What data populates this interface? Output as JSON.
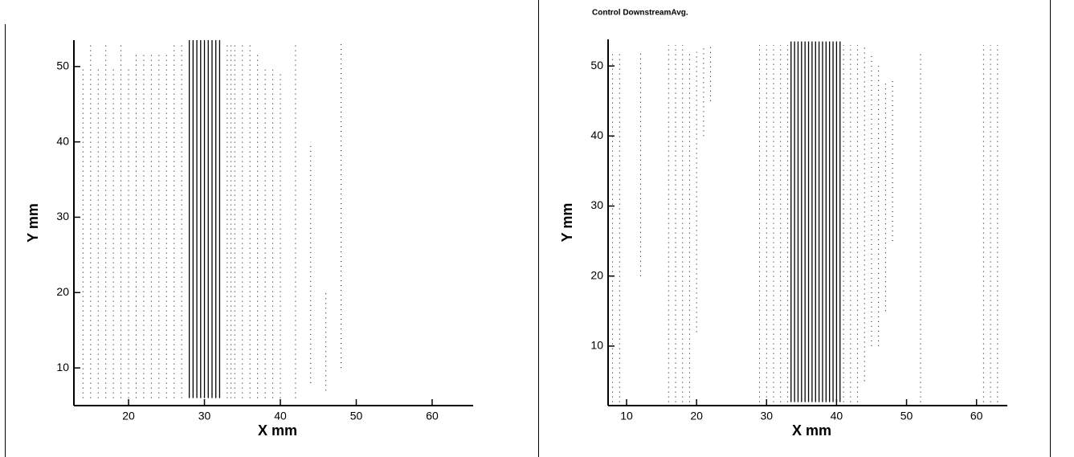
{
  "chart_data": [
    {
      "type": "quiver",
      "xlabel": "X mm",
      "ylabel": "Y mm",
      "xlim": [
        12.8,
        65.4
      ],
      "ylim": [
        5,
        53.5
      ],
      "xticks": [
        20,
        30,
        40,
        50,
        60
      ],
      "yticks": [
        10,
        20,
        30,
        40,
        50
      ],
      "color": "#000000",
      "columns": {
        "x": [
          14,
          15,
          16,
          17,
          18,
          19,
          20,
          21,
          22,
          23,
          24,
          25,
          26,
          27,
          33,
          33.5,
          34,
          35,
          36,
          37,
          38,
          39,
          40,
          42,
          44,
          46,
          48
        ],
        "ymin": [
          6,
          6,
          6,
          6,
          6,
          6,
          6,
          6,
          6,
          6,
          6,
          6,
          6,
          6,
          6,
          6,
          6,
          6,
          6,
          6,
          6,
          6,
          6,
          6,
          8,
          7,
          10
        ],
        "ymax": [
          50,
          53,
          50,
          53,
          50,
          53,
          50,
          52,
          52,
          52,
          52,
          52,
          53,
          53,
          53,
          53,
          53,
          53,
          53,
          52,
          50,
          50,
          49,
          53,
          40,
          20,
          53
        ]
      },
      "streaks": {
        "x": [
          28,
          28.5,
          29,
          29.5,
          30,
          30.5,
          31,
          31.5,
          32
        ],
        "ymin": [
          6,
          6,
          6,
          6,
          6,
          6,
          6,
          6,
          6
        ],
        "ymax": [
          53.5,
          53.5,
          53.5,
          53.5,
          53.5,
          53.5,
          53.5,
          53.5,
          53.5
        ]
      }
    },
    {
      "type": "quiver",
      "title": "Control DownstreamAvg.",
      "xlabel": "X mm",
      "ylabel": "Y mm",
      "xlim": [
        7.36,
        64.4
      ],
      "ylim": [
        1.5,
        53.8
      ],
      "xticks": [
        10,
        20,
        30,
        40,
        50,
        60
      ],
      "yticks": [
        10,
        20,
        30,
        40,
        50
      ],
      "color": "#000000",
      "columns": {
        "x": [
          8,
          9,
          12,
          16,
          17,
          18,
          19,
          20,
          21,
          22,
          29,
          30,
          31,
          32,
          33,
          41,
          42,
          43,
          44,
          45,
          46,
          47,
          48,
          52,
          61,
          62,
          63
        ],
        "ymin": [
          2,
          2,
          20,
          2,
          2,
          2,
          2,
          12,
          40,
          45,
          2,
          2,
          2,
          2,
          2,
          2,
          2,
          2,
          5,
          10,
          10,
          15,
          25,
          2,
          2,
          2,
          2
        ],
        "ymax": [
          52,
          52,
          52,
          53,
          53,
          53,
          52,
          52,
          53,
          53,
          53,
          53,
          53,
          53,
          53,
          53,
          53,
          53,
          53,
          52,
          50,
          48,
          48,
          52,
          53,
          53,
          53
        ]
      },
      "streaks": {
        "x": [
          33.5,
          34,
          34.5,
          35,
          35.5,
          36,
          36.5,
          37,
          37.5,
          38,
          38.5,
          39,
          39.5,
          40,
          40.5
        ],
        "ymin": [
          2,
          2,
          2,
          2,
          2,
          2,
          2,
          2,
          2,
          2,
          2,
          2,
          2,
          2,
          2
        ],
        "ymax": [
          53.5,
          53.5,
          53.5,
          53.5,
          53.5,
          53.5,
          53.5,
          53.5,
          53.5,
          53.5,
          53.5,
          53.5,
          53.5,
          53.5,
          53.5
        ]
      }
    }
  ]
}
